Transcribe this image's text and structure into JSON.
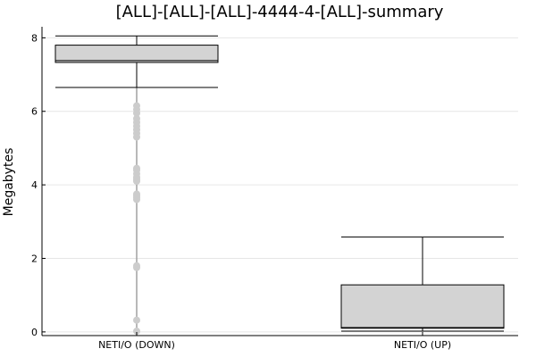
{
  "chart_data": {
    "type": "box",
    "title": "[ALL]-[ALL]-[ALL]-4444-4-[ALL]-summary",
    "xlabel": "",
    "ylabel": "Megabytes",
    "ylim": [
      -0.1,
      8.3
    ],
    "yticks": [
      0,
      2,
      4,
      6,
      8
    ],
    "grid": true,
    "categories": [
      "NETI/O (DOWN)",
      "NETI/O (UP)"
    ],
    "boxes": [
      {
        "name": "NETI/O (DOWN)",
        "whisker_low": 6.65,
        "q1": 7.33,
        "median": 7.38,
        "q3": 7.8,
        "whisker_high": 8.05,
        "outliers": [
          0.02,
          0.32,
          1.75,
          1.8,
          3.6,
          3.65,
          3.7,
          3.75,
          4.1,
          4.15,
          4.2,
          4.3,
          4.4,
          4.45,
          5.3,
          5.4,
          5.5,
          5.6,
          5.7,
          5.8,
          5.95,
          6.05,
          6.15
        ]
      },
      {
        "name": "NETI/O (UP)",
        "whisker_low": 0.02,
        "q1": 0.1,
        "median": 0.12,
        "q3": 1.28,
        "whisker_high": 2.58,
        "outliers": []
      }
    ]
  }
}
